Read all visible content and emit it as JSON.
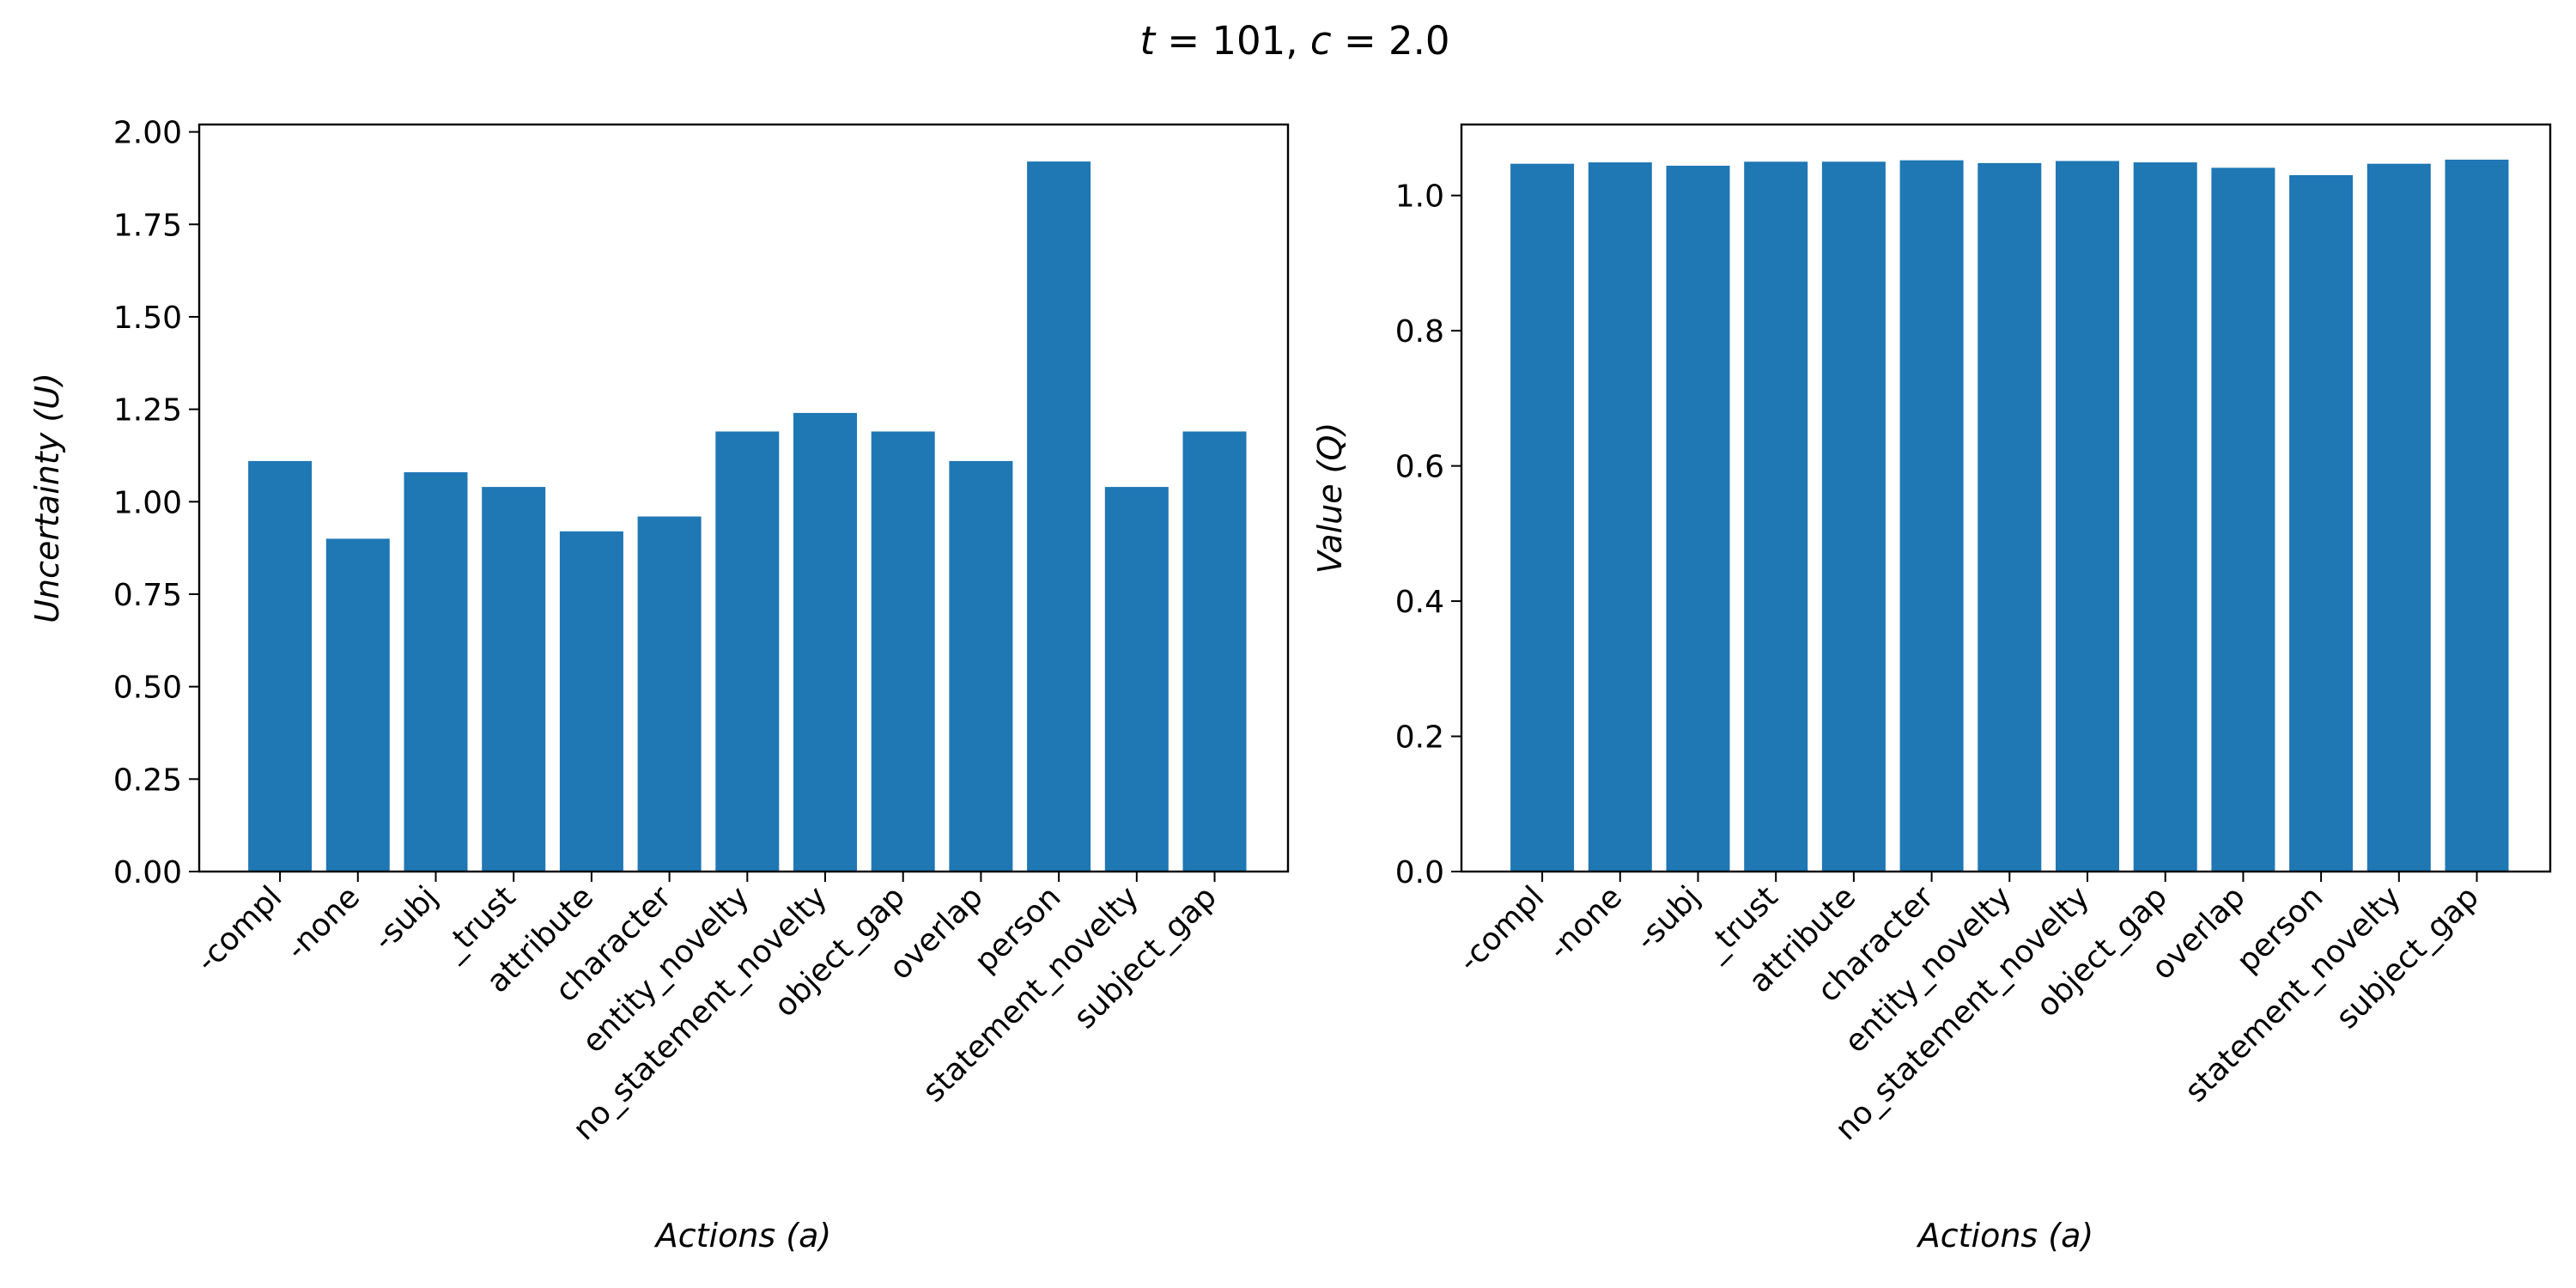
{
  "figure": {
    "suptitle": {
      "t_symbol": "t",
      "t_eq": " = 101, ",
      "c_symbol": "c",
      "c_eq": " = 2.0"
    }
  },
  "chart_data": [
    {
      "type": "bar",
      "categories": [
        "-compl",
        "-none",
        "-subj",
        "_trust",
        "attribute",
        "character",
        "entity_novelty",
        "no_statement_novelty",
        "object_gap",
        "overlap",
        "person",
        "statement_novelty",
        "subject_gap"
      ],
      "values": [
        1.11,
        0.9,
        1.08,
        1.04,
        0.92,
        0.96,
        1.19,
        1.24,
        1.19,
        1.11,
        1.92,
        1.04,
        1.19
      ],
      "xlabel": "Actions (a)",
      "ylabel": "Uncertainty (U)",
      "ylim": [
        0,
        2.02
      ],
      "yticks": [
        0.0,
        0.25,
        0.5,
        0.75,
        1.0,
        1.25,
        1.5,
        1.75,
        2.0
      ],
      "ytick_labels": [
        "0.00",
        "0.25",
        "0.50",
        "0.75",
        "1.00",
        "1.25",
        "1.50",
        "1.75",
        "2.00"
      ],
      "grid": false,
      "color": "#1f77b4"
    },
    {
      "type": "bar",
      "categories": [
        "-compl",
        "-none",
        "-subj",
        "_trust",
        "attribute",
        "character",
        "entity_novelty",
        "no_statement_novelty",
        "object_gap",
        "overlap",
        "person",
        "statement_novelty",
        "subject_gap"
      ],
      "values": [
        1.047,
        1.049,
        1.044,
        1.05,
        1.05,
        1.052,
        1.048,
        1.051,
        1.049,
        1.041,
        1.03,
        1.047,
        1.053
      ],
      "xlabel": "Actions (a)",
      "ylabel": "Value (Q)",
      "ylim": [
        0,
        1.105
      ],
      "yticks": [
        0.0,
        0.2,
        0.4,
        0.6,
        0.8,
        1.0
      ],
      "ytick_labels": [
        "0.0",
        "0.2",
        "0.4",
        "0.6",
        "0.8",
        "1.0"
      ],
      "grid": false,
      "color": "#1f77b4"
    }
  ]
}
